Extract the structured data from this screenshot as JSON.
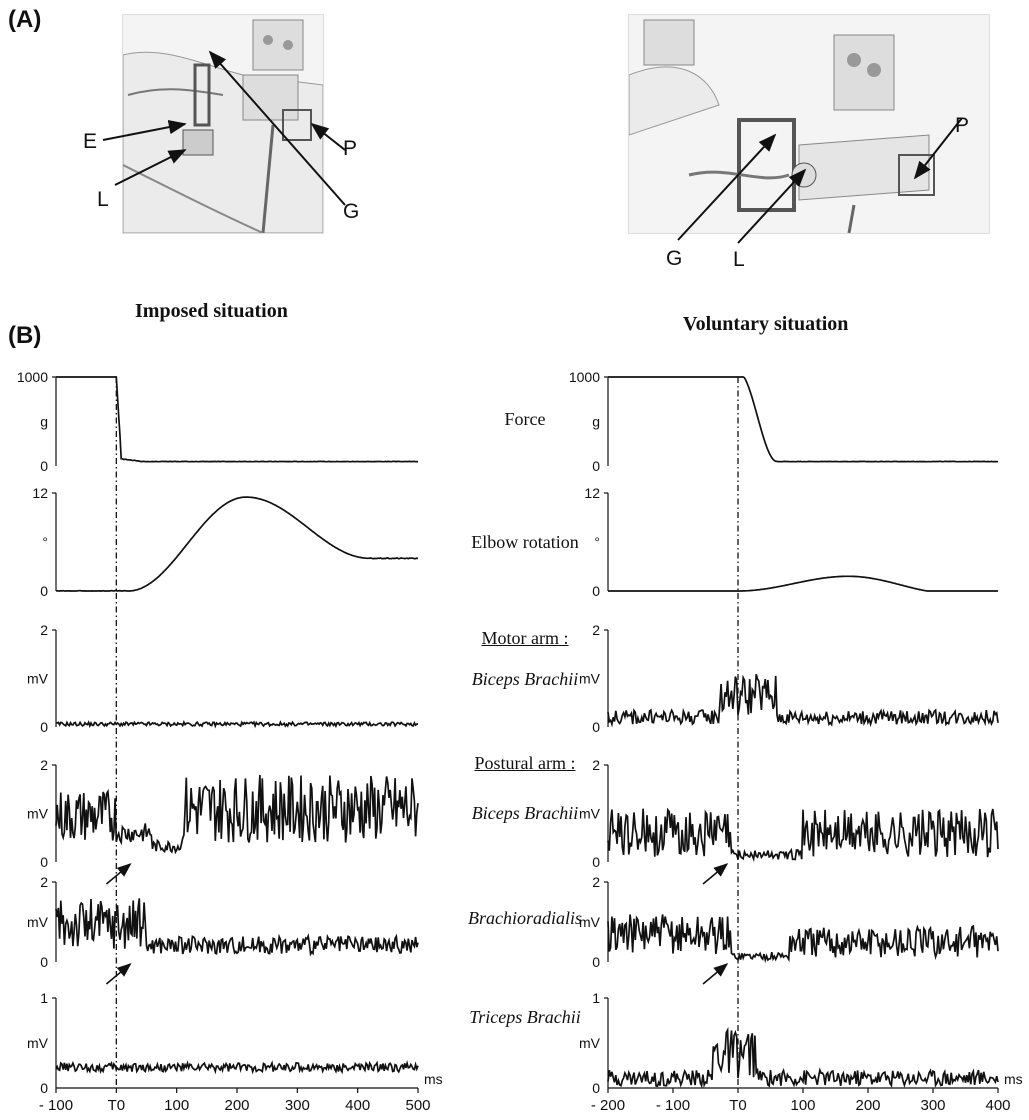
{
  "panel_a": {
    "label": "(A)",
    "left_callouts": [
      "E",
      "L",
      "G",
      "P"
    ],
    "right_callouts": [
      "G",
      "L",
      "P"
    ]
  },
  "panel_b": {
    "label": "(B)",
    "imposed_title": "Imposed situation",
    "voluntary_title": "Voluntary situation",
    "middle_labels": {
      "force": "Force",
      "elbow": "Elbow rotation",
      "motor_arm": "Motor arm :",
      "motor_biceps": "Biceps Brachii",
      "postural_arm": "Postural arm :",
      "postural_biceps": "Biceps Brachii",
      "brachio": "Brachioradialis",
      "triceps": "Triceps Brachii"
    }
  },
  "chart_data": [
    {
      "type": "line",
      "name": "imposed",
      "x_unit": "ms",
      "xlim": [
        -100,
        500
      ],
      "x_ticks": [
        "- 100",
        "T0",
        "100",
        "200",
        "300",
        "400",
        "500"
      ],
      "x_tick_values": [
        -100,
        0,
        100,
        200,
        300,
        400,
        500
      ],
      "event_line_at": 0,
      "traces": [
        {
          "key": "force",
          "unit": "g",
          "ylim": [
            0,
            1000
          ],
          "y_ticks": [
            "1000",
            "0"
          ],
          "kind": "force_imposed"
        },
        {
          "key": "elbow",
          "unit": "°",
          "ylim": [
            0,
            12
          ],
          "y_ticks": [
            "12",
            "0"
          ],
          "kind": "elbow_imposed"
        },
        {
          "key": "motor_biceps",
          "unit": "mV",
          "ylim": [
            0,
            2
          ],
          "y_ticks": [
            "2",
            "0"
          ],
          "kind": "emg",
          "base": 0.02,
          "amp": 0.04
        },
        {
          "key": "postural_biceps",
          "unit": "mV",
          "ylim": [
            0,
            2
          ],
          "y_ticks": [
            "2",
            "0"
          ],
          "kind": "emg_postural_imposed"
        },
        {
          "key": "brachio",
          "unit": "mV",
          "ylim": [
            0,
            2
          ],
          "y_ticks": [
            "2",
            "0"
          ],
          "kind": "emg_brachio_imposed"
        },
        {
          "key": "triceps",
          "unit": "mV",
          "ylim": [
            0,
            1
          ],
          "y_ticks": [
            "1",
            "0"
          ],
          "kind": "emg",
          "base": 0.18,
          "amp": 0.1
        }
      ],
      "arrows_under": [
        "postural_biceps",
        "brachio"
      ],
      "arrow_at_ms": 20
    },
    {
      "type": "line",
      "name": "voluntary",
      "x_unit": "ms",
      "xlim": [
        -200,
        400
      ],
      "x_ticks": [
        "- 200",
        "- 100",
        "T0",
        "100",
        "200",
        "300",
        "400"
      ],
      "x_tick_values": [
        -200,
        -100,
        0,
        100,
        200,
        300,
        400
      ],
      "event_line_at": 0,
      "traces": [
        {
          "key": "force",
          "unit": "g",
          "ylim": [
            0,
            1000
          ],
          "y_ticks": [
            "1000",
            "0"
          ],
          "kind": "force_voluntary"
        },
        {
          "key": "elbow",
          "unit": "°",
          "ylim": [
            0,
            12
          ],
          "y_ticks": [
            "12",
            "0"
          ],
          "kind": "elbow_voluntary"
        },
        {
          "key": "motor_biceps",
          "unit": "mV",
          "ylim": [
            0,
            2
          ],
          "y_ticks": [
            "2",
            "0"
          ],
          "kind": "emg_motor_voluntary"
        },
        {
          "key": "postural_biceps",
          "unit": "mV",
          "ylim": [
            0,
            2
          ],
          "y_ticks": [
            "2",
            "0"
          ],
          "kind": "emg_postural_voluntary"
        },
        {
          "key": "brachio",
          "unit": "mV",
          "ylim": [
            0,
            2
          ],
          "y_ticks": [
            "2",
            "0"
          ],
          "kind": "emg_brachio_voluntary"
        },
        {
          "key": "triceps",
          "unit": "mV",
          "ylim": [
            0,
            1
          ],
          "y_ticks": [
            "1",
            "0"
          ],
          "kind": "emg_triceps_voluntary"
        }
      ],
      "arrows_under": [
        "postural_biceps",
        "brachio"
      ],
      "arrow_at_ms": -20
    }
  ]
}
